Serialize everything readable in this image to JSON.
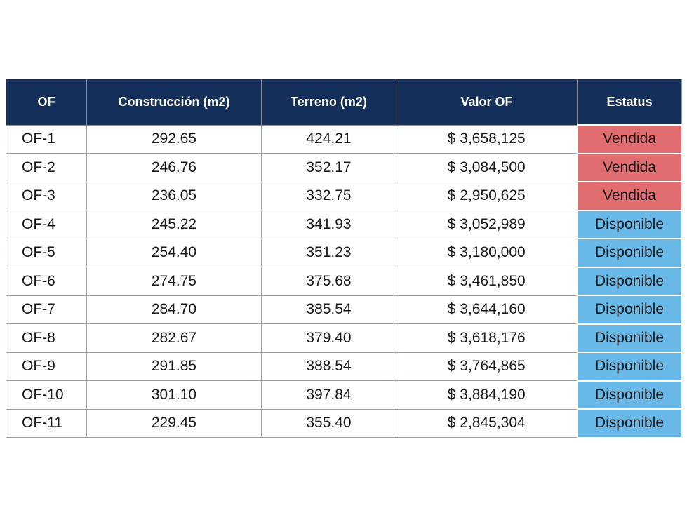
{
  "table": {
    "header": [
      "OF",
      "Construcción (m2)",
      "Terreno (m2)",
      "Valor OF",
      "Estatus"
    ],
    "rows": [
      [
        "OF-1",
        "292.65",
        "424.21",
        "$ 3,658,125",
        "Vendida"
      ],
      [
        "OF-2",
        "246.76",
        "352.17",
        "$ 3,084,500",
        "Vendida"
      ],
      [
        "OF-3",
        "236.05",
        "332.75",
        "$ 2,950,625",
        "Vendida"
      ],
      [
        "OF-4",
        "245.22",
        "341.93",
        "$ 3,052,989",
        "Disponible"
      ],
      [
        "OF-5",
        "254.40",
        "351.23",
        "$ 3,180,000",
        "Disponible"
      ],
      [
        "OF-6",
        "274.75",
        "375.68",
        "$ 3,461,850",
        "Disponible"
      ],
      [
        "OF-7",
        "284.70",
        "385.54",
        "$ 3,644,160",
        "Disponible"
      ],
      [
        "OF-8",
        "282.67",
        "379.40",
        "$ 3,618,176",
        "Disponible"
      ],
      [
        "OF-9",
        "291.85",
        "388.54",
        "$ 3,764,865",
        "Disponible"
      ],
      [
        "OF-10",
        "301.10",
        "397.84",
        "$ 3,884,190",
        "Disponible"
      ],
      [
        "OF-11",
        "229.45",
        "355.40",
        "$ 2,845,304",
        "Disponible"
      ]
    ],
    "status_colors": {
      "Vendida": "#e26d71",
      "Disponible": "#68b8e8"
    }
  }
}
